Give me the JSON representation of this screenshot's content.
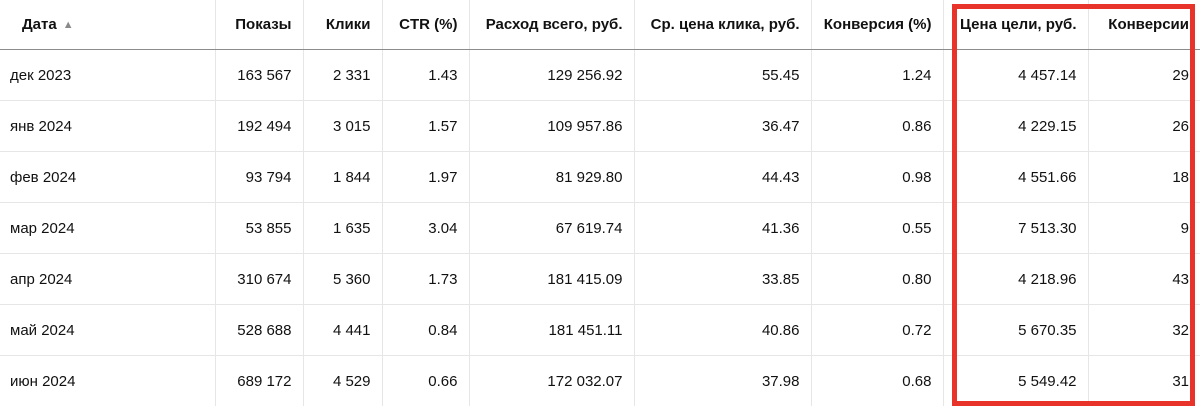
{
  "table": {
    "columns": [
      "Дата",
      "Показы",
      "Клики",
      "CTR (%)",
      "Расход всего, руб.",
      "Ср. цена клика, руб.",
      "Конверсия (%)",
      "Цена цели, руб.",
      "Конверсии"
    ],
    "sort_indicator": "▲",
    "rows": [
      [
        "дек 2023",
        "163 567",
        "2 331",
        "1.43",
        "129 256.92",
        "55.45",
        "1.24",
        "4 457.14",
        "29"
      ],
      [
        "янв 2024",
        "192 494",
        "3 015",
        "1.57",
        "109 957.86",
        "36.47",
        "0.86",
        "4 229.15",
        "26"
      ],
      [
        "фев 2024",
        "93 794",
        "1 844",
        "1.97",
        "81 929.80",
        "44.43",
        "0.98",
        "4 551.66",
        "18"
      ],
      [
        "мар 2024",
        "53 855",
        "1 635",
        "3.04",
        "67 619.74",
        "41.36",
        "0.55",
        "7 513.30",
        "9"
      ],
      [
        "апр 2024",
        "310 674",
        "5 360",
        "1.73",
        "181 415.09",
        "33.85",
        "0.80",
        "4 218.96",
        "43"
      ],
      [
        "май 2024",
        "528 688",
        "4 441",
        "0.84",
        "181 451.11",
        "40.86",
        "0.72",
        "5 670.35",
        "32"
      ],
      [
        "июн 2024",
        "689 172",
        "4 529",
        "0.66",
        "172 032.07",
        "37.98",
        "0.68",
        "5 549.42",
        "31"
      ]
    ]
  },
  "highlight": {
    "color": "#e8332a",
    "columns": [
      "Цена цели, руб.",
      "Конверсии"
    ]
  }
}
